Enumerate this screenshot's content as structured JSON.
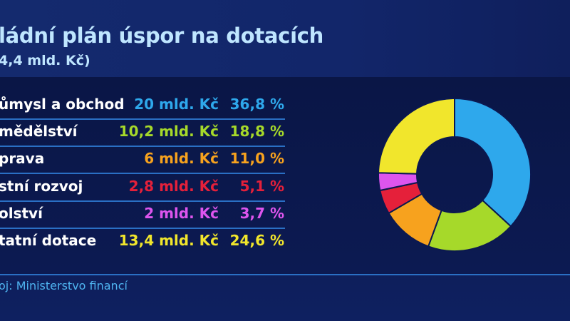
{
  "header": {
    "title": "ládní plán úspor na dotacích",
    "subtitle": "4,4 mld. Kč)"
  },
  "source": "oj: Ministerstvo financí",
  "chart_data": {
    "type": "pie",
    "donut": true,
    "categories": [
      "ůmysl a obchod",
      "mědělství",
      "prava",
      "stní rozvoj",
      "olství",
      "tatní dotace"
    ],
    "amounts": [
      "20 mld. Kč",
      "10,2 mld. Kč",
      "6 mld. Kč",
      "2,8 mld. Kč",
      "2 mld. Kč",
      "13,4 mld. Kč"
    ],
    "percent_labels": [
      "36,8 %",
      "18,8 %",
      "11,0 %",
      "5,1 %",
      "3,7 %",
      "24,6 %"
    ],
    "values": [
      36.8,
      18.8,
      11.0,
      5.1,
      3.7,
      24.6
    ],
    "colors": [
      "#2ea8ec",
      "#a6d92a",
      "#f7a21e",
      "#e5203a",
      "#dd55ee",
      "#f1e62c"
    ]
  }
}
